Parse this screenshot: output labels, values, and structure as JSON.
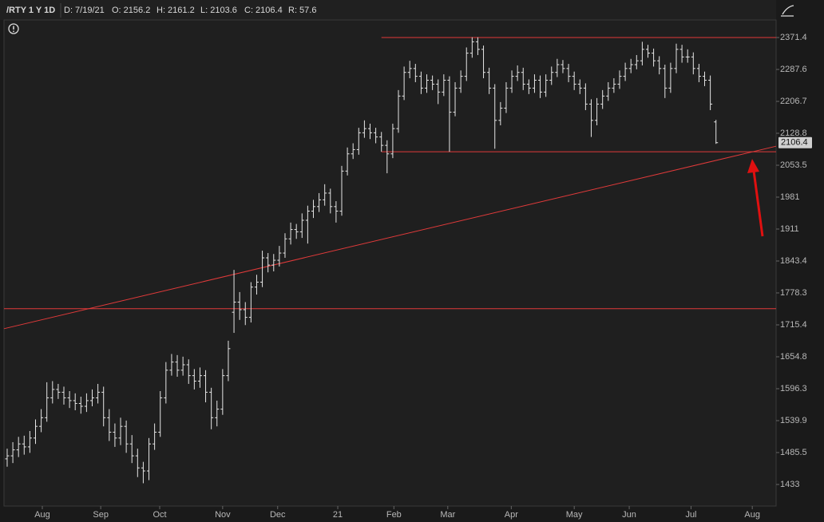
{
  "header": {
    "symbol": "/RTY 1 Y 1D",
    "fields": [
      "D: 7/19/21",
      "O: 2156.2",
      "H: 2161.2",
      "L: 2103.6",
      "C: 2106.4",
      "R: 57.6"
    ]
  },
  "chart_data": {
    "type": "ohlc",
    "ylog": true,
    "color": "#e6e6e6",
    "open": [
      1475,
      1480,
      1490,
      1500,
      1495,
      1510,
      1530,
      1545,
      1580,
      1595,
      1590,
      1580,
      1575,
      1570,
      1565,
      1575,
      1580,
      1590,
      1545,
      1520,
      1510,
      1530,
      1500,
      1480,
      1460,
      1455,
      1500,
      1520,
      1580,
      1630,
      1645,
      1630,
      1640,
      1620,
      1610,
      1620,
      1590,
      1545,
      1560,
      1620,
      1740,
      1760,
      1745,
      1730,
      1790,
      1800,
      1850,
      1835,
      1845,
      1860,
      1890,
      1910,
      1905,
      1930,
      1950,
      1960,
      1975,
      1990,
      1960,
      1950,
      2040,
      2080,
      2090,
      2130,
      2140,
      2130,
      2120,
      2100,
      2080,
      2140,
      2220,
      2280,
      2290,
      2270,
      2240,
      2260,
      2250,
      2230,
      2260,
      2180,
      2240,
      2270,
      2330,
      2360,
      2340,
      2280,
      2240,
      2160,
      2190,
      2240,
      2270,
      2280,
      2250,
      2240,
      2260,
      2230,
      2260,
      2280,
      2300,
      2290,
      2270,
      2250,
      2240,
      2200,
      2160,
      2200,
      2220,
      2240,
      2250,
      2270,
      2290,
      2300,
      2310,
      2340,
      2330,
      2310,
      2290,
      2240,
      2290,
      2340,
      2320,
      2320,
      2290,
      2270,
      2260,
      2156.2
    ],
    "high": [
      1492,
      1503,
      1512,
      1514,
      1522,
      1542,
      1560,
      1608,
      1610,
      1605,
      1600,
      1592,
      1588,
      1582,
      1588,
      1595,
      1605,
      1600,
      1560,
      1535,
      1545,
      1540,
      1515,
      1492,
      1470,
      1510,
      1535,
      1592,
      1645,
      1660,
      1658,
      1655,
      1650,
      1632,
      1635,
      1630,
      1598,
      1575,
      1632,
      1685,
      1825,
      1780,
      1760,
      1800,
      1815,
      1865,
      1860,
      1858,
      1875,
      1902,
      1925,
      1922,
      1945,
      1962,
      1975,
      1990,
      2010,
      2000,
      1972,
      2052,
      2095,
      2105,
      2142,
      2160,
      2152,
      2142,
      2132,
      2112,
      2152,
      2235,
      2295,
      2310,
      2302,
      2282,
      2275,
      2272,
      2262,
      2275,
      2270,
      2255,
      2285,
      2345,
      2372,
      2372,
      2350,
      2292,
      2250,
      2205,
      2255,
      2285,
      2298,
      2292,
      2262,
      2275,
      2272,
      2275,
      2295,
      2315,
      2312,
      2302,
      2282,
      2262,
      2252,
      2212,
      2215,
      2235,
      2255,
      2265,
      2285,
      2305,
      2315,
      2325,
      2360,
      2352,
      2342,
      2322,
      2300,
      2305,
      2355,
      2352,
      2340,
      2332,
      2302,
      2282,
      2272,
      2161.2
    ],
    "low": [
      1462,
      1468,
      1478,
      1482,
      1485,
      1500,
      1520,
      1538,
      1570,
      1578,
      1568,
      1562,
      1558,
      1552,
      1555,
      1565,
      1570,
      1530,
      1505,
      1495,
      1498,
      1485,
      1468,
      1445,
      1435,
      1440,
      1490,
      1512,
      1570,
      1620,
      1618,
      1620,
      1605,
      1595,
      1598,
      1572,
      1525,
      1530,
      1550,
      1610,
      1700,
      1725,
      1715,
      1720,
      1775,
      1790,
      1820,
      1822,
      1832,
      1850,
      1878,
      1890,
      1892,
      1880,
      1935,
      1948,
      1962,
      1945,
      1925,
      1940,
      2030,
      2068,
      2078,
      2118,
      2115,
      2105,
      2085,
      2035,
      2070,
      2130,
      2210,
      2265,
      2255,
      2225,
      2228,
      2235,
      2200,
      2220,
      2085,
      2170,
      2228,
      2258,
      2318,
      2325,
      2265,
      2225,
      2092,
      2148,
      2178,
      2228,
      2258,
      2235,
      2225,
      2228,
      2215,
      2218,
      2248,
      2268,
      2278,
      2255,
      2235,
      2225,
      2185,
      2120,
      2148,
      2188,
      2208,
      2228,
      2238,
      2258,
      2278,
      2288,
      2298,
      2318,
      2295,
      2275,
      2215,
      2228,
      2278,
      2305,
      2305,
      2275,
      2255,
      2245,
      2185,
      2103.6
    ],
    "close": [
      1480,
      1490,
      1500,
      1495,
      1510,
      1530,
      1545,
      1580,
      1595,
      1590,
      1580,
      1575,
      1570,
      1565,
      1575,
      1580,
      1590,
      1545,
      1520,
      1510,
      1530,
      1500,
      1480,
      1460,
      1455,
      1500,
      1520,
      1580,
      1630,
      1645,
      1630,
      1640,
      1620,
      1610,
      1620,
      1590,
      1545,
      1560,
      1620,
      1670,
      1760,
      1745,
      1730,
      1790,
      1800,
      1850,
      1835,
      1845,
      1860,
      1890,
      1910,
      1905,
      1930,
      1950,
      1960,
      1975,
      1990,
      1960,
      1950,
      2040,
      2080,
      2090,
      2130,
      2140,
      2130,
      2120,
      2100,
      2080,
      2140,
      2220,
      2280,
      2290,
      2270,
      2240,
      2260,
      2250,
      2230,
      2260,
      2180,
      2240,
      2270,
      2330,
      2360,
      2340,
      2280,
      2240,
      2160,
      2190,
      2240,
      2270,
      2280,
      2250,
      2240,
      2260,
      2230,
      2260,
      2280,
      2300,
      2290,
      2270,
      2250,
      2240,
      2200,
      2160,
      2200,
      2220,
      2240,
      2250,
      2270,
      2290,
      2300,
      2310,
      2340,
      2330,
      2310,
      2290,
      2240,
      2290,
      2340,
      2320,
      2320,
      2290,
      2270,
      2260,
      2200,
      2106.4
    ],
    "xlim": [
      -0.56,
      135.6
    ],
    "xticks": [
      {
        "value": 6.2,
        "label": "Aug"
      },
      {
        "value": 16.5,
        "label": "Sep"
      },
      {
        "value": 26.9,
        "label": "Oct"
      },
      {
        "value": 38,
        "label": "Nov"
      },
      {
        "value": 47.7,
        "label": "Dec"
      },
      {
        "value": 58.3,
        "label": "21"
      },
      {
        "value": 68.2,
        "label": "Feb"
      },
      {
        "value": 77.7,
        "label": "Mar"
      },
      {
        "value": 88.9,
        "label": "Apr"
      },
      {
        "value": 100,
        "label": "May"
      },
      {
        "value": 109.7,
        "label": "Jun"
      },
      {
        "value": 120.6,
        "label": "Jul"
      },
      {
        "value": 131.4,
        "label": "Aug"
      }
    ],
    "ylim": [
      1398.6,
      2418.8
    ],
    "yticks": [
      1433,
      1485.5,
      1539.9,
      1596.3,
      1654.8,
      1715.4,
      1778.3,
      1843.4,
      1911,
      1981,
      2053.5,
      2128.8,
      2206.7,
      2287.6,
      2371.4
    ],
    "line_color": "#e03a3a",
    "lines": [
      {
        "x": [
          66,
          135.6
        ],
        "y": [
          2371.4,
          2371.4
        ]
      },
      {
        "x": [
          66,
          135.6
        ],
        "y": [
          2085,
          2085
        ]
      },
      {
        "x": [
          -0.56,
          135.6
        ],
        "y": [
          1747,
          1747
        ]
      },
      {
        "x": [
          -0.56,
          135.6
        ],
        "y": [
          1708,
          2098
        ]
      }
    ]
  }
}
